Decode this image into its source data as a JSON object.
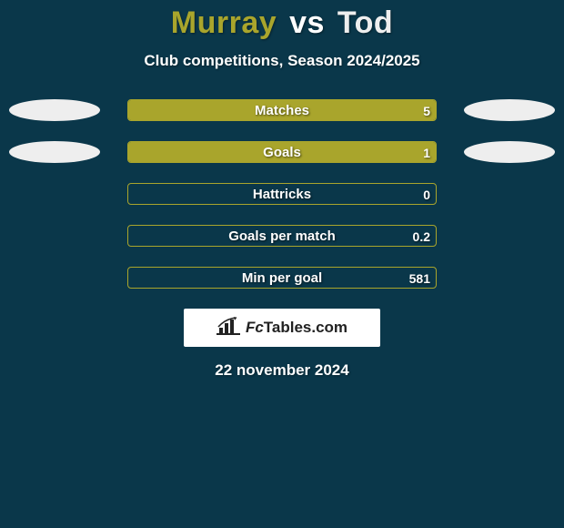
{
  "background_color": "#0a374a",
  "title": {
    "player1": "Murray",
    "vs": "vs",
    "player2": "Tod",
    "player1_color": "#a9a52c",
    "player2_color": "#eeeeee",
    "fontsize": 34
  },
  "subtitle": {
    "text": "Club competitions, Season 2024/2025",
    "fontsize": 17,
    "color": "#ffffff"
  },
  "ellipse_colors": {
    "left": "#eeeeee",
    "right": "#eeeeee"
  },
  "bars": {
    "track_width": 340,
    "track_border_color": "#a9a52c",
    "fill_color_left": "#a9a52c",
    "fill_color_right": "#a9a52c",
    "label_fontsize": 15,
    "value_fontsize": 14,
    "rows": [
      {
        "label": "Matches",
        "left_val": "",
        "right_val": "5",
        "left_pct": 0,
        "right_pct": 100,
        "show_left_ellipse": true,
        "show_right_ellipse": true,
        "left_ellipse_color": "#eeeeee",
        "right_ellipse_color": "#eeeeee"
      },
      {
        "label": "Goals",
        "left_val": "",
        "right_val": "1",
        "left_pct": 0,
        "right_pct": 100,
        "show_left_ellipse": true,
        "show_right_ellipse": true,
        "left_ellipse_color": "#eeeeee",
        "right_ellipse_color": "#eeeeee"
      },
      {
        "label": "Hattricks",
        "left_val": "",
        "right_val": "0",
        "left_pct": 0,
        "right_pct": 0,
        "show_left_ellipse": false,
        "show_right_ellipse": false
      },
      {
        "label": "Goals per match",
        "left_val": "",
        "right_val": "0.2",
        "left_pct": 0,
        "right_pct": 0,
        "show_left_ellipse": false,
        "show_right_ellipse": false
      },
      {
        "label": "Min per goal",
        "left_val": "",
        "right_val": "581",
        "left_pct": 0,
        "right_pct": 0,
        "show_left_ellipse": false,
        "show_right_ellipse": false
      }
    ]
  },
  "logo": {
    "bg_color": "#ffffff",
    "text_color": "#222222",
    "text_fc": "Fc",
    "text_rest": "Tables.com",
    "icon_color": "#222222"
  },
  "date": {
    "text": "22 november 2024",
    "fontsize": 17,
    "color": "#ffffff"
  }
}
